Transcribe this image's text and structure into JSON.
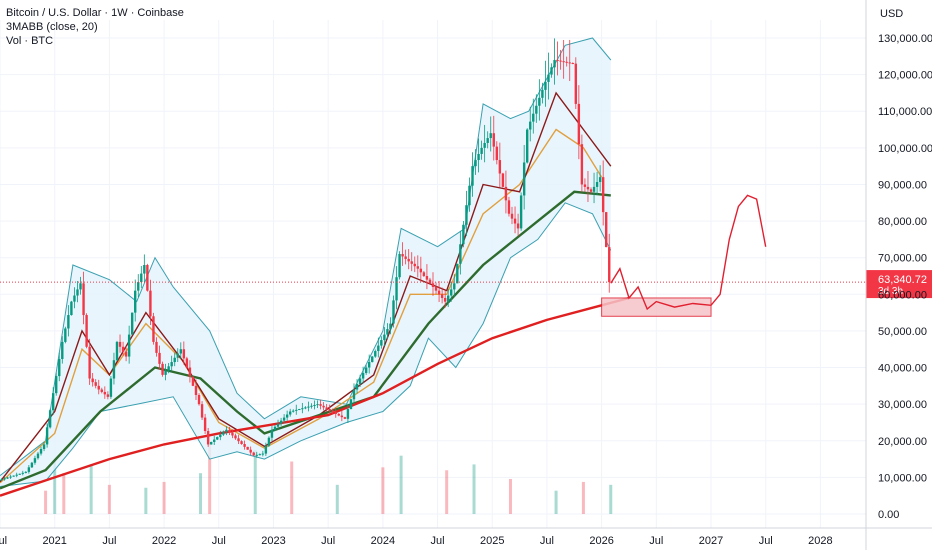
{
  "legend": {
    "symbol": "Bitcoin / U.S. Dollar · 1W · Coinbase",
    "indicator": "3MABB (close, 20)",
    "volume": "Vol · BTC"
  },
  "price_axis": {
    "currency": "USD",
    "tick_labels": [
      "130,000.00",
      "120,000.00",
      "110,000.00",
      "100,000.00",
      "90,000.00",
      "80,000.00",
      "70,000.00",
      "60,000.00",
      "50,000.00",
      "40,000.00",
      "30,000.00",
      "20,000.00",
      "10,000.00",
      "0.00"
    ],
    "current_price": "63,340.72",
    "countdown": "3d 3h"
  },
  "time_axis": {
    "labels": [
      "Jul",
      "2021",
      "Jul",
      "2022",
      "Jul",
      "2023",
      "Jul",
      "2024",
      "Jul",
      "2025",
      "Jul",
      "2026",
      "Jul",
      "2027",
      "Jul",
      "2028"
    ]
  },
  "colors": {
    "up": "#089981",
    "down": "#f23645",
    "ma_fast": "#e0a040",
    "ma_mid": "#8b1a1a",
    "ma_slow": "#2e6b2e",
    "ma_long": "#e02020",
    "band_fill": "#e3f2fd",
    "band_line": "#3aa0b0",
    "annotation": "#e02030",
    "price_label_bg": "#f23645",
    "grid": "#f0f3fa"
  },
  "chart_data": {
    "type": "line",
    "title": "Bitcoin / U.S. Dollar · 1W · Coinbase",
    "xlabel": "",
    "ylabel": "USD",
    "ylim": [
      0,
      130000
    ],
    "x_range": [
      "2020-07",
      "2028-06"
    ],
    "grid": true,
    "series": [
      {
        "name": "price",
        "points": [
          [
            "2020-07",
            9200
          ],
          [
            "2020-10",
            11500
          ],
          [
            "2020-12",
            19000
          ],
          [
            "2021-01",
            33000
          ],
          [
            "2021-02",
            47000
          ],
          [
            "2021-03",
            58000
          ],
          [
            "2021-04",
            63000
          ],
          [
            "2021-05",
            37000
          ],
          [
            "2021-06",
            34000
          ],
          [
            "2021-07",
            32000
          ],
          [
            "2021-08",
            47000
          ],
          [
            "2021-09",
            43000
          ],
          [
            "2021-10",
            61000
          ],
          [
            "2021-11",
            68000
          ],
          [
            "2021-12",
            47000
          ],
          [
            "2022-01",
            38000
          ],
          [
            "2022-03",
            45000
          ],
          [
            "2022-05",
            30000
          ],
          [
            "2022-06",
            19000
          ],
          [
            "2022-08",
            23000
          ],
          [
            "2022-11",
            16000
          ],
          [
            "2022-12",
            16500
          ],
          [
            "2023-01",
            23000
          ],
          [
            "2023-03",
            28000
          ],
          [
            "2023-06",
            30000
          ],
          [
            "2023-09",
            26000
          ],
          [
            "2023-10",
            34000
          ],
          [
            "2023-12",
            43000
          ],
          [
            "2024-02",
            52000
          ],
          [
            "2024-03",
            71000
          ],
          [
            "2024-05",
            67000
          ],
          [
            "2024-08",
            58000
          ],
          [
            "2024-09",
            63000
          ],
          [
            "2024-11",
            95000
          ],
          [
            "2024-12",
            100000
          ],
          [
            "2025-01",
            104000
          ],
          [
            "2025-03",
            82000
          ],
          [
            "2025-04",
            78000
          ],
          [
            "2025-05",
            105000
          ],
          [
            "2025-07",
            118000
          ],
          [
            "2025-08",
            124000
          ],
          [
            "2025-10",
            123000
          ],
          [
            "2025-11",
            90000
          ],
          [
            "2025-12",
            88000
          ],
          [
            "2026-01",
            92000
          ],
          [
            "2026-02",
            63340
          ]
        ]
      },
      {
        "name": "ma_fast",
        "points": [
          [
            "2020-07",
            8500
          ],
          [
            "2021-01",
            22000
          ],
          [
            "2021-04",
            45000
          ],
          [
            "2021-07",
            38000
          ],
          [
            "2021-11",
            52000
          ],
          [
            "2022-03",
            42000
          ],
          [
            "2022-07",
            25000
          ],
          [
            "2022-12",
            18000
          ],
          [
            "2023-06",
            26000
          ],
          [
            "2023-12",
            36000
          ],
          [
            "2024-04",
            60000
          ],
          [
            "2024-08",
            60000
          ],
          [
            "2024-12",
            82000
          ],
          [
            "2025-04",
            90000
          ],
          [
            "2025-08",
            105000
          ],
          [
            "2025-11",
            100000
          ],
          [
            "2026-01",
            92000
          ]
        ]
      },
      {
        "name": "ma_mid",
        "points": [
          [
            "2020-07",
            8800
          ],
          [
            "2021-01",
            28000
          ],
          [
            "2021-04",
            50000
          ],
          [
            "2021-07",
            38000
          ],
          [
            "2021-11",
            55000
          ],
          [
            "2022-03",
            42000
          ],
          [
            "2022-07",
            26000
          ],
          [
            "2022-12",
            18500
          ],
          [
            "2023-06",
            27000
          ],
          [
            "2023-12",
            38000
          ],
          [
            "2024-04",
            65000
          ],
          [
            "2024-08",
            61000
          ],
          [
            "2024-12",
            90000
          ],
          [
            "2025-04",
            88000
          ],
          [
            "2025-08",
            115000
          ],
          [
            "2025-11",
            105000
          ],
          [
            "2026-02",
            95000
          ]
        ]
      },
      {
        "name": "ma_slow",
        "points": [
          [
            "2020-07",
            7000
          ],
          [
            "2020-12",
            12000
          ],
          [
            "2021-06",
            28000
          ],
          [
            "2021-12",
            40000
          ],
          [
            "2022-05",
            37000
          ],
          [
            "2022-09",
            28000
          ],
          [
            "2022-12",
            22000
          ],
          [
            "2023-06",
            27000
          ],
          [
            "2023-12",
            32000
          ],
          [
            "2024-06",
            52000
          ],
          [
            "2024-12",
            68000
          ],
          [
            "2025-06",
            80000
          ],
          [
            "2025-10",
            88000
          ],
          [
            "2026-02",
            87000
          ]
        ]
      },
      {
        "name": "ma_long",
        "points": [
          [
            "2020-07",
            5000
          ],
          [
            "2021-01",
            10000
          ],
          [
            "2021-07",
            15000
          ],
          [
            "2022-01",
            19000
          ],
          [
            "2022-07",
            22000
          ],
          [
            "2023-01",
            24500
          ],
          [
            "2023-07",
            27000
          ],
          [
            "2024-01",
            33000
          ],
          [
            "2024-07",
            41000
          ],
          [
            "2025-01",
            48000
          ],
          [
            "2025-07",
            53000
          ],
          [
            "2026-01",
            57000
          ],
          [
            "2026-04",
            59000
          ]
        ]
      },
      {
        "name": "bb_upper",
        "points": [
          [
            "2020-07",
            10500
          ],
          [
            "2020-12",
            20000
          ],
          [
            "2021-03",
            68000
          ],
          [
            "2021-07",
            64000
          ],
          [
            "2021-10",
            58000
          ],
          [
            "2021-12",
            70000
          ],
          [
            "2022-02",
            62000
          ],
          [
            "2022-06",
            50000
          ],
          [
            "2022-09",
            33000
          ],
          [
            "2022-12",
            26000
          ],
          [
            "2023-04",
            32000
          ],
          [
            "2023-09",
            30000
          ],
          [
            "2024-01",
            50000
          ],
          [
            "2024-03",
            78000
          ],
          [
            "2024-07",
            73000
          ],
          [
            "2024-10",
            78000
          ],
          [
            "2024-12",
            112000
          ],
          [
            "2025-03",
            108000
          ],
          [
            "2025-05",
            110000
          ],
          [
            "2025-09",
            128000
          ],
          [
            "2025-12",
            130000
          ],
          [
            "2026-02",
            124000
          ]
        ]
      },
      {
        "name": "bb_lower",
        "points": [
          [
            "2020-07",
            7500
          ],
          [
            "2020-12",
            9000
          ],
          [
            "2021-03",
            18000
          ],
          [
            "2021-06",
            28000
          ],
          [
            "2021-10",
            30000
          ],
          [
            "2022-02",
            32000
          ],
          [
            "2022-06",
            15000
          ],
          [
            "2022-09",
            17000
          ],
          [
            "2022-12",
            15000
          ],
          [
            "2023-04",
            20000
          ],
          [
            "2023-09",
            25000
          ],
          [
            "2024-01",
            28000
          ],
          [
            "2024-04",
            35000
          ],
          [
            "2024-06",
            48000
          ],
          [
            "2024-09",
            40000
          ],
          [
            "2024-12",
            52000
          ],
          [
            "2025-03",
            70000
          ],
          [
            "2025-06",
            75000
          ],
          [
            "2025-09",
            85000
          ],
          [
            "2025-12",
            82000
          ],
          [
            "2026-02",
            72000
          ]
        ]
      },
      {
        "name": "projection",
        "points": [
          [
            "2026-02",
            63000
          ],
          [
            "2026-03",
            67000
          ],
          [
            "2026-04",
            59000
          ],
          [
            "2026-05",
            62000
          ],
          [
            "2026-06",
            56000
          ],
          [
            "2026-07",
            58000
          ],
          [
            "2026-09",
            56500
          ],
          [
            "2026-11",
            57500
          ],
          [
            "2027-01",
            57000
          ],
          [
            "2027-02",
            60000
          ],
          [
            "2027-03",
            75000
          ],
          [
            "2027-04",
            84000
          ],
          [
            "2027-05",
            87000
          ],
          [
            "2027-06",
            86000
          ],
          [
            "2027-07",
            73000
          ]
        ]
      }
    ],
    "support_zone": {
      "x_from": "2026-01",
      "x_to": "2027-01",
      "y_from": 54000,
      "y_to": 59000
    },
    "volume": [
      {
        "x": "2020-12",
        "v": 4000
      },
      {
        "x": "2021-01",
        "v": 9000
      },
      {
        "x": "2021-02",
        "v": 7000
      },
      {
        "x": "2021-05",
        "v": 8500
      },
      {
        "x": "2021-07",
        "v": 5000
      },
      {
        "x": "2021-11",
        "v": 4500
      },
      {
        "x": "2022-01",
        "v": 5500
      },
      {
        "x": "2022-05",
        "v": 7000
      },
      {
        "x": "2022-06",
        "v": 12000
      },
      {
        "x": "2022-11",
        "v": 11000
      },
      {
        "x": "2023-03",
        "v": 9000
      },
      {
        "x": "2023-08",
        "v": 5000
      },
      {
        "x": "2024-01",
        "v": 8000
      },
      {
        "x": "2024-03",
        "v": 10000
      },
      {
        "x": "2024-08",
        "v": 7500
      },
      {
        "x": "2024-11",
        "v": 8500
      },
      {
        "x": "2025-03",
        "v": 6000
      },
      {
        "x": "2025-08",
        "v": 4000
      },
      {
        "x": "2025-11",
        "v": 5500
      },
      {
        "x": "2026-02",
        "v": 5000
      }
    ]
  }
}
